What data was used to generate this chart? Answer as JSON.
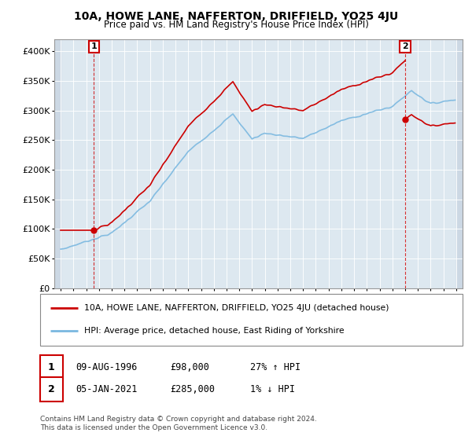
{
  "title": "10A, HOWE LANE, NAFFERTON, DRIFFIELD, YO25 4JU",
  "subtitle": "Price paid vs. HM Land Registry's House Price Index (HPI)",
  "ylabel_ticks": [
    "£0",
    "£50K",
    "£100K",
    "£150K",
    "£200K",
    "£250K",
    "£300K",
    "£350K",
    "£400K"
  ],
  "ytick_values": [
    0,
    50000,
    100000,
    150000,
    200000,
    250000,
    300000,
    350000,
    400000
  ],
  "ylim": [
    0,
    420000
  ],
  "xlim_start": 1993.5,
  "xlim_end": 2025.5,
  "sale1_x": 1996.6,
  "sale1_y": 98000,
  "sale2_x": 2021.0,
  "sale2_y": 285000,
  "hpi_color": "#7ab8e0",
  "price_color": "#cc0000",
  "bg_color": "#dde8f0",
  "hatch_bg": "#ccd8e4",
  "legend_label1": "10A, HOWE LANE, NAFFERTON, DRIFFIELD, YO25 4JU (detached house)",
  "legend_label2": "HPI: Average price, detached house, East Riding of Yorkshire",
  "sale1_date": "09-AUG-1996",
  "sale1_price": "£98,000",
  "sale1_hpi": "27% ↑ HPI",
  "sale2_date": "05-JAN-2021",
  "sale2_price": "£285,000",
  "sale2_hpi": "1% ↓ HPI",
  "footer": "Contains HM Land Registry data © Crown copyright and database right 2024.\nThis data is licensed under the Open Government Licence v3.0."
}
